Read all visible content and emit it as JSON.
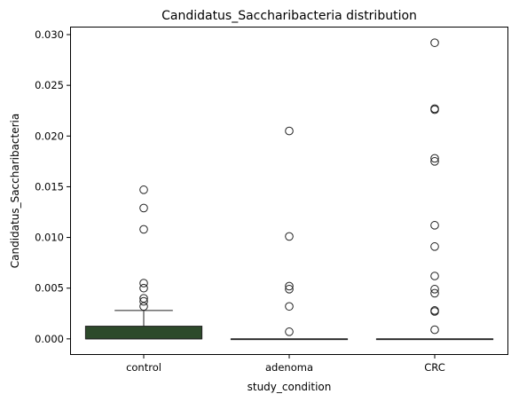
{
  "chart_data": {
    "type": "box",
    "title": "Candidatus_Saccharibacteria distribution",
    "xlabel": "study_condition",
    "ylabel": "Candidatus_Saccharibacteria",
    "categories": [
      "control",
      "adenoma",
      "CRC"
    ],
    "ylim": [
      -0.0015,
      0.0307
    ],
    "yticks": [
      0.0,
      0.005,
      0.01,
      0.015,
      0.02,
      0.025,
      0.03
    ],
    "ytick_labels": [
      "0.000",
      "0.005",
      "0.010",
      "0.015",
      "0.020",
      "0.025",
      "0.030"
    ],
    "grid": false,
    "legend": "none",
    "box_color": "#2d4a2b",
    "boxes": [
      {
        "category": "control",
        "whisker_low": 0.0,
        "q1": 0.0,
        "median": 0.0,
        "q3": 0.00125,
        "whisker_high": 0.0028,
        "outliers": [
          0.0147,
          0.0129,
          0.0108,
          0.0055,
          0.005,
          0.004,
          0.0037,
          0.0032
        ]
      },
      {
        "category": "adenoma",
        "whisker_low": 0.0,
        "q1": 0.0,
        "median": 0.0,
        "q3": 0.0,
        "whisker_high": 0.0,
        "outliers": [
          0.0205,
          0.0101,
          0.0052,
          0.0049,
          0.0032,
          0.0007
        ]
      },
      {
        "category": "CRC",
        "whisker_low": 0.0,
        "q1": 0.0,
        "median": 0.0,
        "q3": 0.0,
        "whisker_high": 0.0,
        "outliers": [
          0.0292,
          0.0227,
          0.0226,
          0.0178,
          0.0175,
          0.0112,
          0.0091,
          0.0062,
          0.0049,
          0.0045,
          0.0028,
          0.0027,
          0.0009
        ]
      }
    ]
  }
}
